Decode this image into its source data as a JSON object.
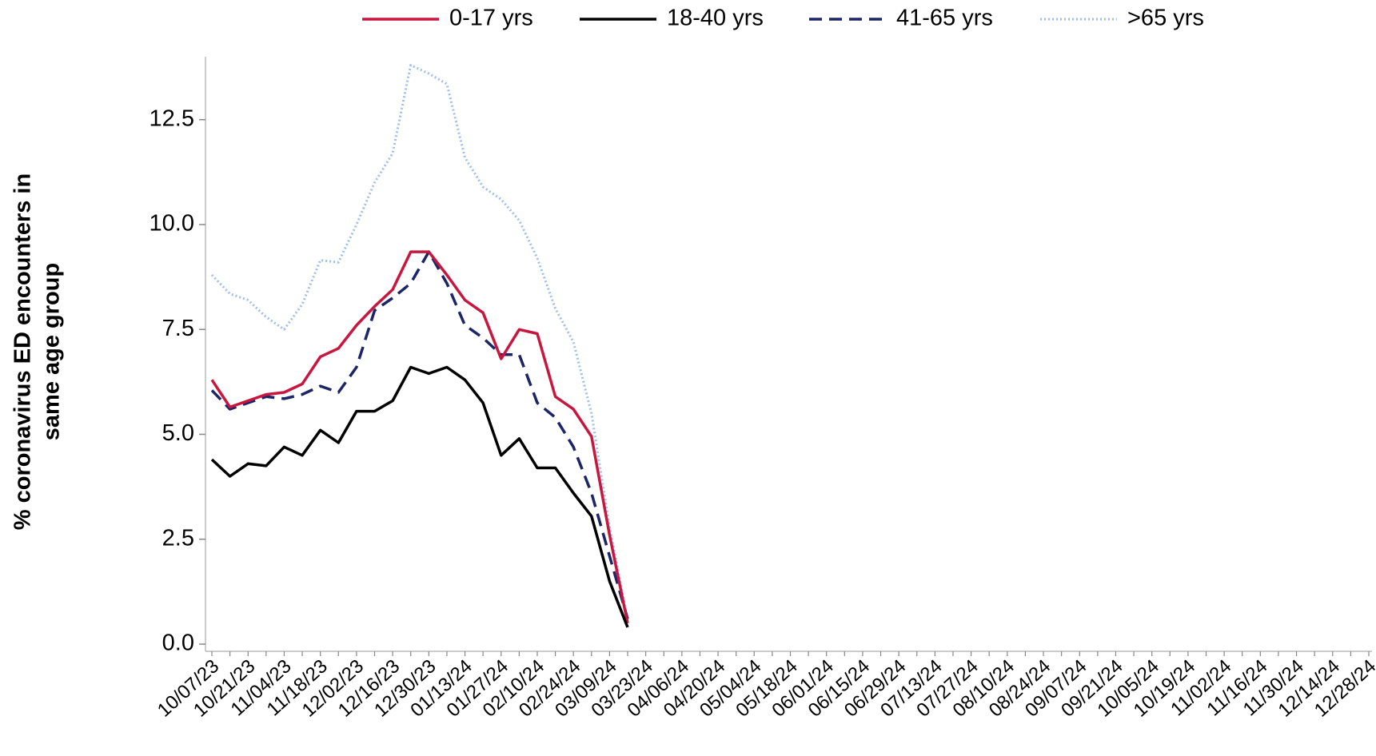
{
  "chart_data": {
    "type": "line",
    "ylabel": [
      "% coronavirus ED encounters in",
      "same age group"
    ],
    "categories": [
      "10/07/23",
      null,
      "10/21/23",
      null,
      "11/04/23",
      null,
      "11/18/23",
      null,
      "12/02/23",
      null,
      "12/16/23",
      null,
      "12/30/23",
      null,
      "01/13/24",
      null,
      "01/27/24",
      null,
      "02/10/24",
      null,
      "02/24/24",
      null,
      "03/09/24",
      null,
      "03/23/24",
      null,
      "04/06/24",
      null,
      "04/20/24",
      null,
      "05/04/24",
      null,
      "05/18/24",
      null,
      "06/01/24",
      null,
      "06/15/24",
      null,
      "06/29/24",
      null,
      "07/13/24",
      null,
      "07/27/24",
      null,
      "08/10/24",
      null,
      "08/24/24",
      null,
      "09/07/24",
      null,
      "09/21/24",
      null,
      "10/05/24",
      null,
      "10/19/24",
      null,
      "11/02/24",
      null,
      "11/16/24",
      null,
      "11/30/24",
      null,
      "12/14/24",
      null,
      "12/28/24"
    ],
    "series": [
      {
        "name": "0-17 yrs",
        "color": "#c8173f",
        "dash": "solid",
        "values": [
          6.3,
          5.65,
          5.8,
          5.95,
          6.0,
          6.2,
          6.85,
          7.05,
          7.6,
          8.05,
          8.45,
          9.35,
          9.35,
          8.8,
          8.2,
          7.9,
          6.8,
          7.5,
          7.4,
          5.9,
          5.6,
          4.95,
          2.6,
          0.5,
          null,
          null,
          null,
          null,
          null,
          null,
          null,
          null,
          null,
          null,
          null,
          null,
          null,
          null,
          null,
          null,
          null,
          null,
          null,
          null,
          null,
          null,
          null,
          null,
          null,
          null,
          null,
          null,
          null,
          null,
          null,
          null,
          null,
          null,
          null,
          null,
          null,
          null,
          null,
          null,
          null
        ]
      },
      {
        "name": "18-40 yrs",
        "color": "#000000",
        "dash": "solid",
        "values": [
          4.4,
          4.0,
          4.3,
          4.25,
          4.7,
          4.5,
          5.1,
          4.8,
          5.55,
          5.55,
          5.8,
          6.6,
          6.45,
          6.6,
          6.3,
          5.75,
          4.5,
          4.9,
          4.2,
          4.2,
          3.6,
          3.05,
          1.5,
          0.4,
          null,
          null,
          null,
          null,
          null,
          null,
          null,
          null,
          null,
          null,
          null,
          null,
          null,
          null,
          null,
          null,
          null,
          null,
          null,
          null,
          null,
          null,
          null,
          null,
          null,
          null,
          null,
          null,
          null,
          null,
          null,
          null,
          null,
          null,
          null,
          null,
          null,
          null,
          null,
          null,
          null
        ]
      },
      {
        "name": "41-65 yrs",
        "color": "#1c2566",
        "dash": "dashed",
        "values": [
          6.05,
          5.6,
          5.75,
          5.9,
          5.85,
          5.95,
          6.15,
          6.0,
          6.6,
          7.95,
          8.25,
          8.6,
          9.35,
          8.6,
          7.6,
          7.3,
          6.9,
          6.9,
          5.75,
          5.4,
          4.7,
          3.6,
          2.1,
          0.6,
          null,
          null,
          null,
          null,
          null,
          null,
          null,
          null,
          null,
          null,
          null,
          null,
          null,
          null,
          null,
          null,
          null,
          null,
          null,
          null,
          null,
          null,
          null,
          null,
          null,
          null,
          null,
          null,
          null,
          null,
          null,
          null,
          null,
          null,
          null,
          null,
          null,
          null,
          null,
          null,
          null
        ]
      },
      {
        "name": ">65 yrs",
        "color": "#9fbfe8",
        "dash": "dotted",
        "values": [
          8.8,
          8.35,
          8.2,
          7.8,
          7.5,
          8.1,
          9.15,
          9.1,
          10.0,
          11.0,
          11.7,
          13.8,
          13.6,
          13.35,
          11.6,
          10.9,
          10.6,
          10.1,
          9.2,
          8.0,
          7.2,
          5.5,
          2.8,
          0.6,
          null,
          null,
          null,
          null,
          null,
          null,
          null,
          null,
          null,
          null,
          null,
          null,
          null,
          null,
          null,
          null,
          null,
          null,
          null,
          null,
          null,
          null,
          null,
          null,
          null,
          null,
          null,
          null,
          null,
          null,
          null,
          null,
          null,
          null,
          null,
          null,
          null,
          null,
          null,
          null,
          null
        ]
      }
    ],
    "ylim": [
      0,
      14
    ],
    "yticks": [
      {
        "value": 0,
        "label": "0.0"
      },
      {
        "value": 2.5,
        "label": "2.5"
      },
      {
        "value": 5,
        "label": "5.0"
      },
      {
        "value": 7.5,
        "label": "7.5"
      },
      {
        "value": 10,
        "label": "10.0"
      },
      {
        "value": 12.5,
        "label": "12.5"
      }
    ],
    "legend": "top",
    "grid": false
  }
}
